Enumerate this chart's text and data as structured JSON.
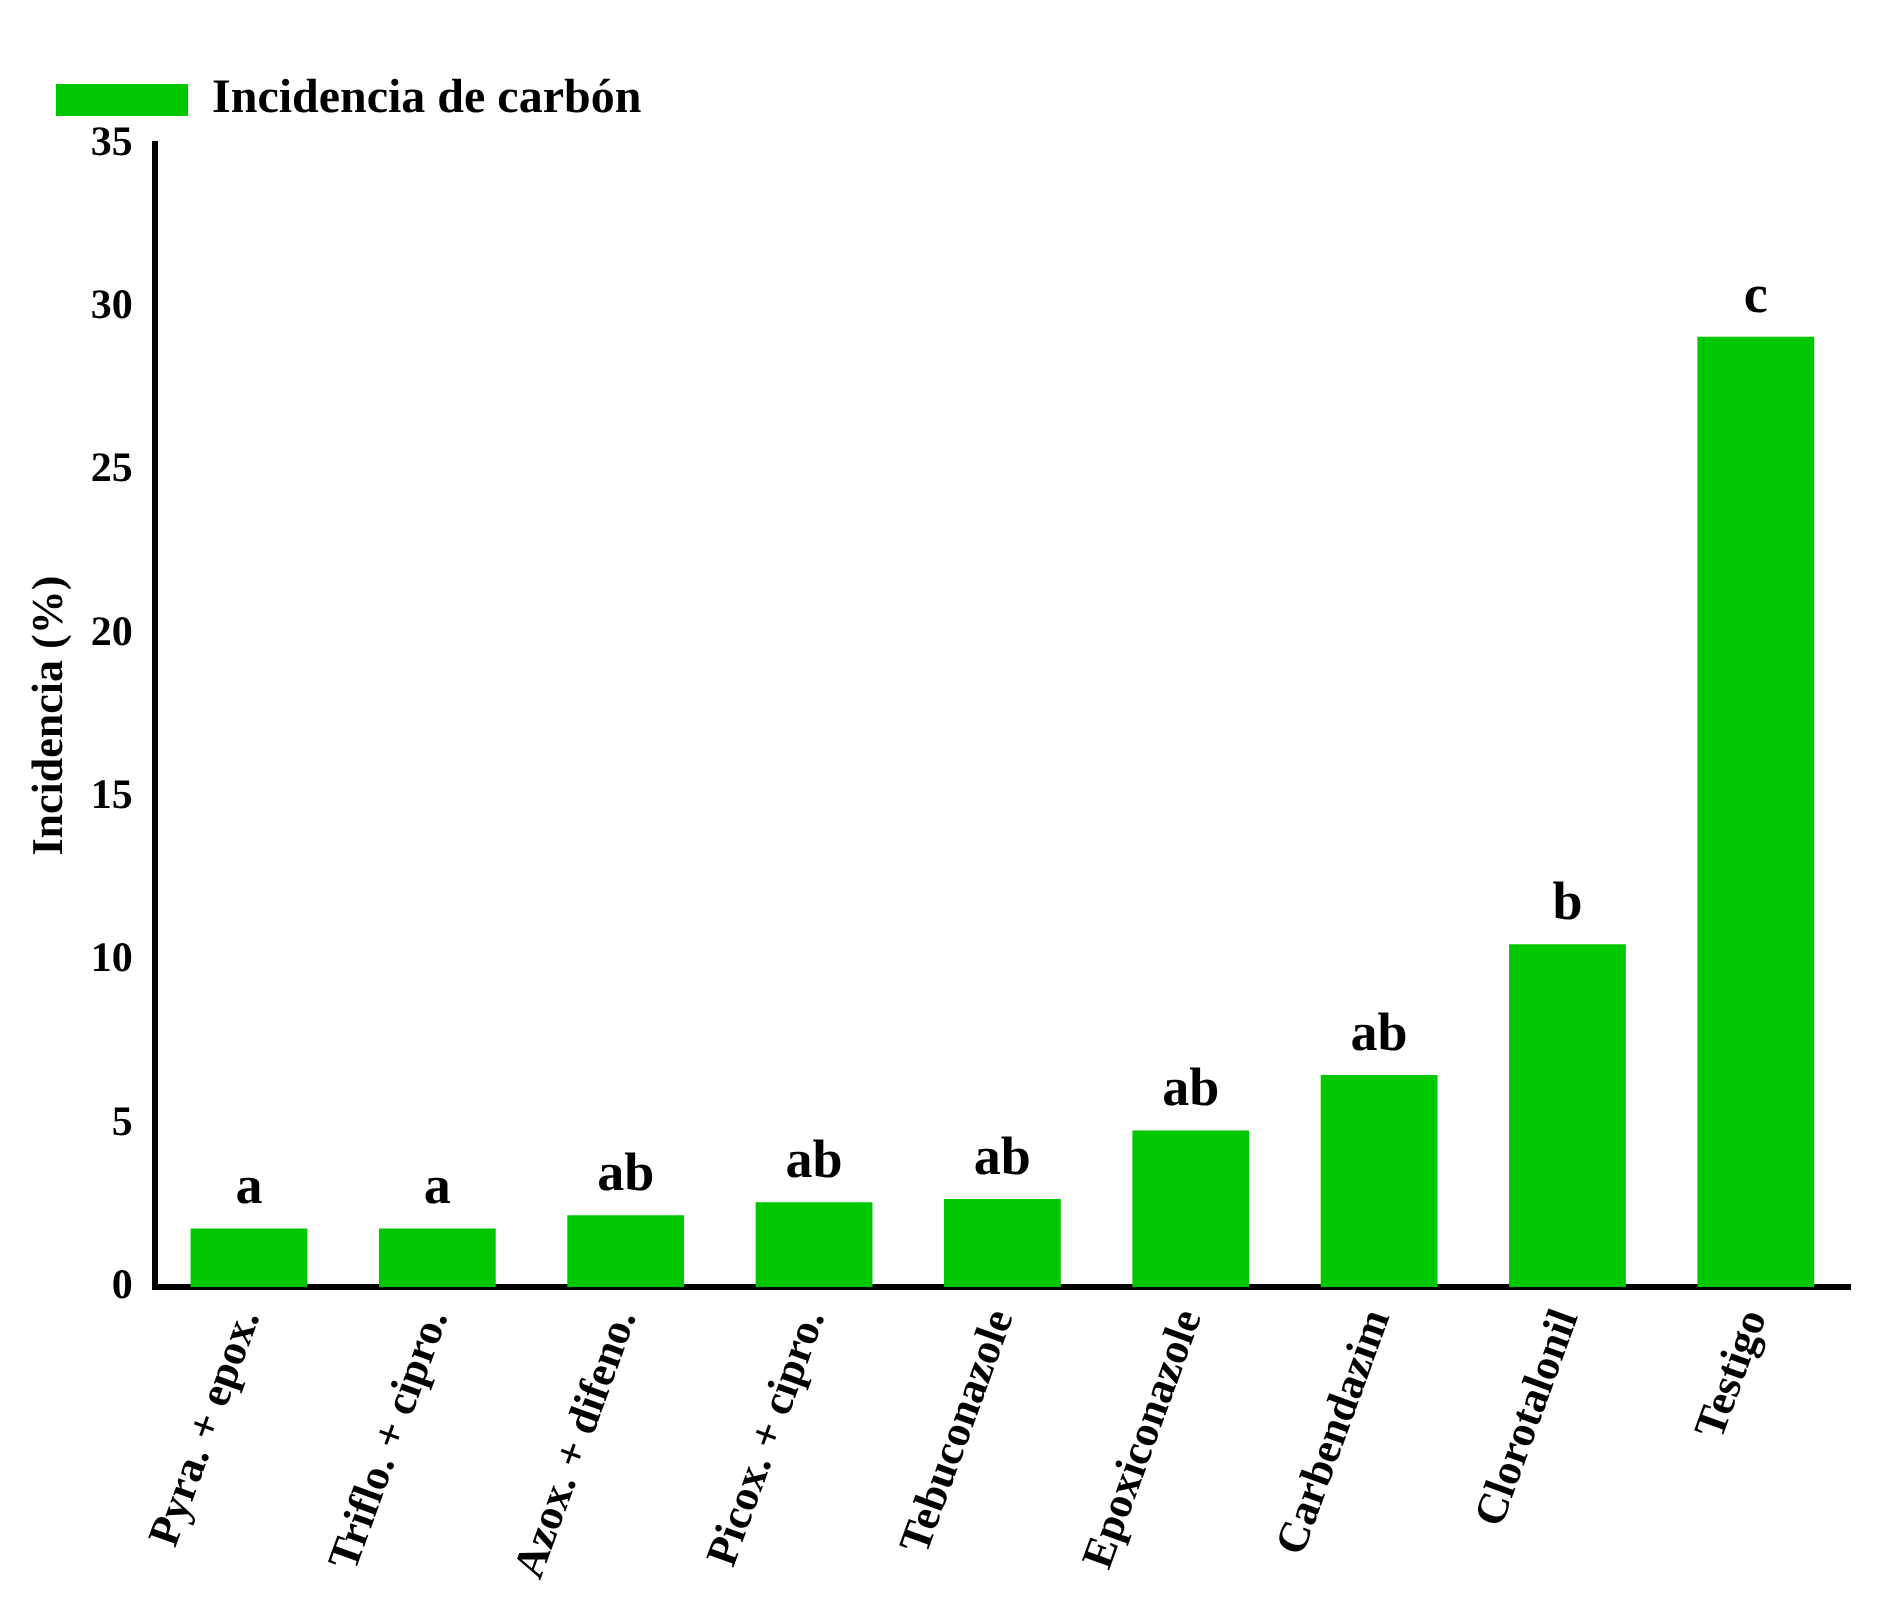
{
  "chart_data": {
    "type": "bar",
    "ylabel": "Incidencia (%)",
    "categories": [
      "Pyra. + epox.",
      "Triflo. + cipro.",
      "Azox. + difeno.",
      "Picox. + cipro.",
      "Tebuconazole",
      "Epoxiconazole",
      "Carbendazim",
      "Clorotalonil",
      "Testigo"
    ],
    "series": [
      {
        "name": "Incidencia de carbón",
        "color": "#00c800",
        "values": [
          1.8,
          1.8,
          2.2,
          2.6,
          2.7,
          4.8,
          6.5,
          10.5,
          29.1
        ]
      }
    ],
    "annotations": [
      {
        "text": "a",
        "x": "Pyra. + epox.",
        "y": 1.8
      },
      {
        "text": "a",
        "x": "Triflo. + cipro.",
        "y": 1.8
      },
      {
        "text": "ab",
        "x": "Azox. + difeno.",
        "y": 2.2
      },
      {
        "text": "ab",
        "x": "Picox. + cipro.",
        "y": 2.6
      },
      {
        "text": "ab",
        "x": "Tebuconazole",
        "y": 2.7
      },
      {
        "text": "ab",
        "x": "Epoxiconazole",
        "y": 4.8
      },
      {
        "text": "ab",
        "x": "Carbendazim",
        "y": 6.5
      },
      {
        "text": "b",
        "x": "Clorotalonil",
        "y": 10.5
      },
      {
        "text": "c",
        "x": "Testigo",
        "y": 29.1
      }
    ],
    "ylim": [
      0,
      35
    ],
    "yticks": [
      0,
      5,
      10,
      15,
      20,
      25,
      30,
      35
    ],
    "grid": false,
    "legend": "top left"
  }
}
